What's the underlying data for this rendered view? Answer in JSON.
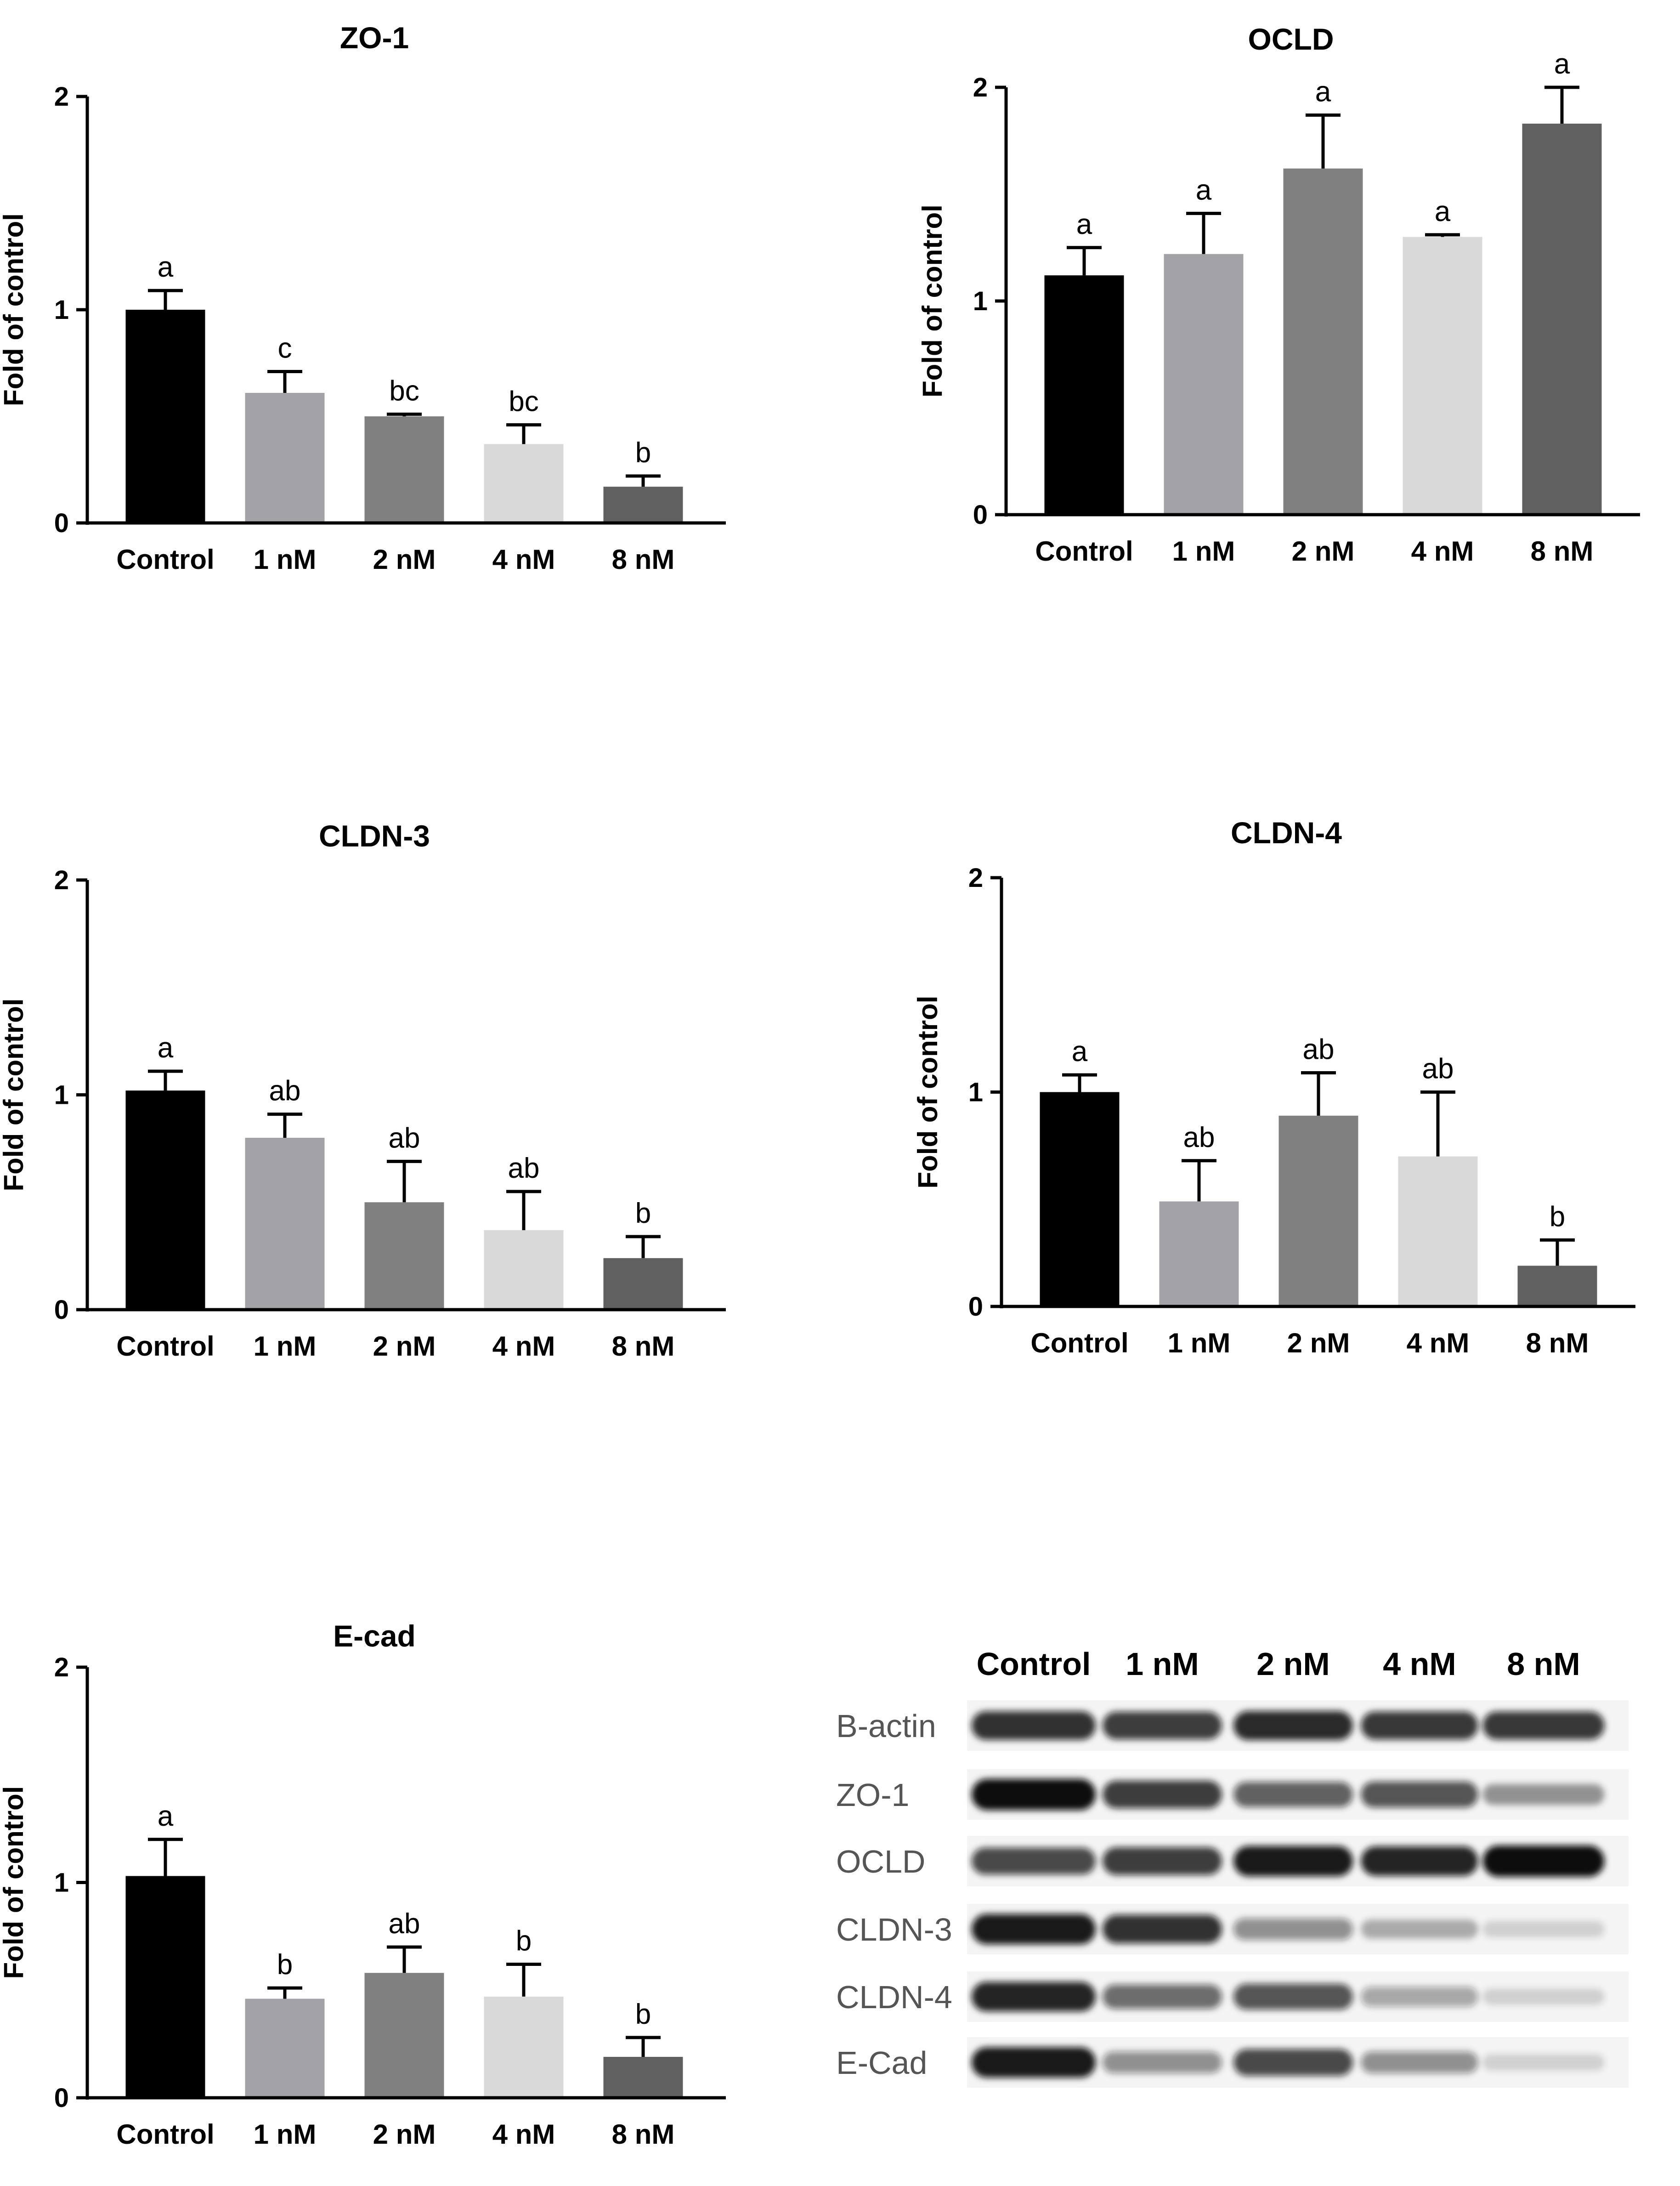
{
  "chart_data": [
    {
      "type": "bar",
      "title": "ZO-1",
      "ylabel": "Fold of control",
      "xlabel": "",
      "ylim": [
        0,
        2
      ],
      "yticks": [
        "0",
        "1",
        "2"
      ],
      "categories": [
        "Control",
        "1 nM",
        "2 nM",
        "4 nM",
        "8 nM"
      ],
      "values": [
        1.0,
        0.61,
        0.5,
        0.37,
        0.17
      ],
      "errors": [
        0.09,
        0.1,
        0.01,
        0.09,
        0.05
      ],
      "significance": [
        "a",
        "c",
        "bc",
        "bc",
        "b"
      ],
      "colors": [
        "#000000",
        "#a3a2a7",
        "#808080",
        "#d9d9d9",
        "#606060"
      ]
    },
    {
      "type": "bar",
      "title": "OCLD",
      "ylabel": "Fold of control",
      "xlabel": "",
      "ylim": [
        0,
        2
      ],
      "yticks": [
        "0",
        "1",
        "2"
      ],
      "categories": [
        "Control",
        "1 nM",
        "2 nM",
        "4 nM",
        "8 nM"
      ],
      "values": [
        1.12,
        1.22,
        1.62,
        1.3,
        1.83
      ],
      "errors": [
        0.13,
        0.19,
        0.25,
        0.01,
        0.17
      ],
      "significance": [
        "a",
        "a",
        "a",
        "a",
        "a"
      ],
      "colors": [
        "#000000",
        "#a3a2a7",
        "#808080",
        "#d9d9d9",
        "#606060"
      ]
    },
    {
      "type": "bar",
      "title": "CLDN-3",
      "ylabel": "Fold of control",
      "xlabel": "",
      "ylim": [
        0,
        2
      ],
      "yticks": [
        "0",
        "1",
        "2"
      ],
      "categories": [
        "Control",
        "1 nM",
        "2 nM",
        "4 nM",
        "8 nM"
      ],
      "values": [
        1.02,
        0.8,
        0.5,
        0.37,
        0.24
      ],
      "errors": [
        0.09,
        0.11,
        0.19,
        0.18,
        0.1
      ],
      "significance": [
        "a",
        "ab",
        "ab",
        "ab",
        "b"
      ],
      "colors": [
        "#000000",
        "#a3a2a7",
        "#808080",
        "#d9d9d9",
        "#606060"
      ]
    },
    {
      "type": "bar",
      "title": "CLDN-4",
      "ylabel": "Fold of control",
      "xlabel": "",
      "ylim": [
        0,
        2
      ],
      "yticks": [
        "0",
        "1",
        "2"
      ],
      "categories": [
        "Control",
        "1 nM",
        "2 nM",
        "4 nM",
        "8 nM"
      ],
      "values": [
        1.0,
        0.49,
        0.89,
        0.7,
        0.19
      ],
      "errors": [
        0.08,
        0.19,
        0.2,
        0.3,
        0.12
      ],
      "significance": [
        "a",
        "ab",
        "ab",
        "ab",
        "b"
      ],
      "colors": [
        "#000000",
        "#a3a2a7",
        "#808080",
        "#d9d9d9",
        "#606060"
      ]
    },
    {
      "type": "bar",
      "title": "E-cad",
      "ylabel": "Fold of control",
      "xlabel": "",
      "ylim": [
        0,
        2
      ],
      "yticks": [
        "0",
        "1",
        "2"
      ],
      "categories": [
        "Control",
        "1 nM",
        "2 nM",
        "4 nM",
        "8 nM"
      ],
      "values": [
        1.03,
        0.46,
        0.58,
        0.47,
        0.19
      ],
      "errors": [
        0.17,
        0.05,
        0.12,
        0.15,
        0.09
      ],
      "significance": [
        "a",
        "b",
        "ab",
        "b",
        "b"
      ],
      "colors": [
        "#000000",
        "#a3a2a7",
        "#808080",
        "#d9d9d9",
        "#606060"
      ]
    }
  ],
  "western_blot": {
    "lanes": [
      "Control",
      "1 nM",
      "2 nM",
      "4 nM",
      "8 nM"
    ],
    "rows": [
      {
        "label": "B-actin",
        "intensity": [
          0.85,
          0.8,
          0.88,
          0.82,
          0.82
        ]
      },
      {
        "label": "ZO-1",
        "intensity": [
          1.0,
          0.8,
          0.65,
          0.7,
          0.4
        ]
      },
      {
        "label": "OCLD",
        "intensity": [
          0.75,
          0.8,
          0.95,
          0.9,
          1.0
        ]
      },
      {
        "label": "CLDN-3",
        "intensity": [
          0.95,
          0.85,
          0.45,
          0.3,
          0.15
        ]
      },
      {
        "label": "CLDN-4",
        "intensity": [
          0.9,
          0.6,
          0.7,
          0.35,
          0.15
        ]
      },
      {
        "label": "E-Cad",
        "intensity": [
          0.95,
          0.45,
          0.75,
          0.45,
          0.15
        ]
      }
    ]
  }
}
